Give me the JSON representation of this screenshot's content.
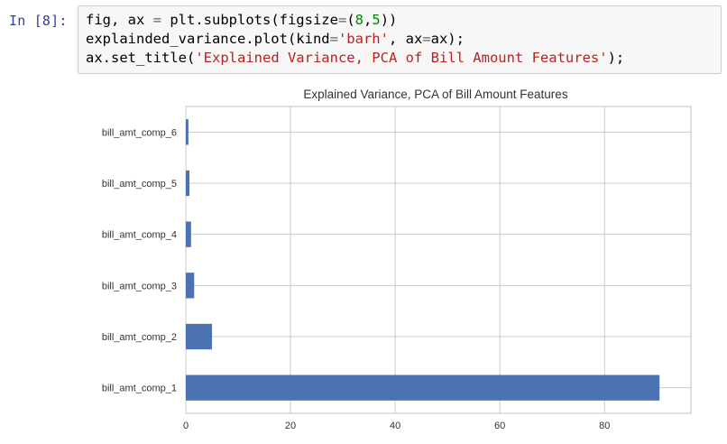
{
  "cell": {
    "prompt": "In [8]:",
    "code_lines": [
      [
        {
          "t": "fig, ax ",
          "c": ""
        },
        {
          "t": "=",
          "c": "op"
        },
        {
          "t": " plt.subplots(figsize",
          "c": ""
        },
        {
          "t": "=",
          "c": "op"
        },
        {
          "t": "(",
          "c": ""
        },
        {
          "t": "8",
          "c": "num"
        },
        {
          "t": ",",
          "c": ""
        },
        {
          "t": "5",
          "c": "num"
        },
        {
          "t": "))",
          "c": ""
        }
      ],
      [
        {
          "t": "explainded_variance.plot(kind",
          "c": ""
        },
        {
          "t": "=",
          "c": "op"
        },
        {
          "t": "'barh'",
          "c": "str"
        },
        {
          "t": ", ax",
          "c": ""
        },
        {
          "t": "=",
          "c": "op"
        },
        {
          "t": "ax);",
          "c": ""
        }
      ],
      [
        {
          "t": "ax.set_title(",
          "c": ""
        },
        {
          "t": "'Explained Variance, PCA of Bill Amount Features'",
          "c": "str"
        },
        {
          "t": ");",
          "c": ""
        }
      ]
    ]
  },
  "chart_data": {
    "type": "bar",
    "orientation": "horizontal",
    "title": "Explained Variance, PCA of Bill Amount Features",
    "xlabel": "",
    "ylabel": "",
    "categories": [
      "bill_amt_comp_1",
      "bill_amt_comp_2",
      "bill_amt_comp_3",
      "bill_amt_comp_4",
      "bill_amt_comp_5",
      "bill_amt_comp_6"
    ],
    "values": [
      90.5,
      5.0,
      1.6,
      1.0,
      0.7,
      0.5
    ],
    "xlim": [
      0,
      96.5
    ],
    "xticks": [
      0,
      20,
      40,
      60,
      80
    ],
    "grid": true,
    "bar_color": "#4c72b0",
    "grid_color": "#cccccc",
    "frame_color": "#bfbfbf"
  }
}
